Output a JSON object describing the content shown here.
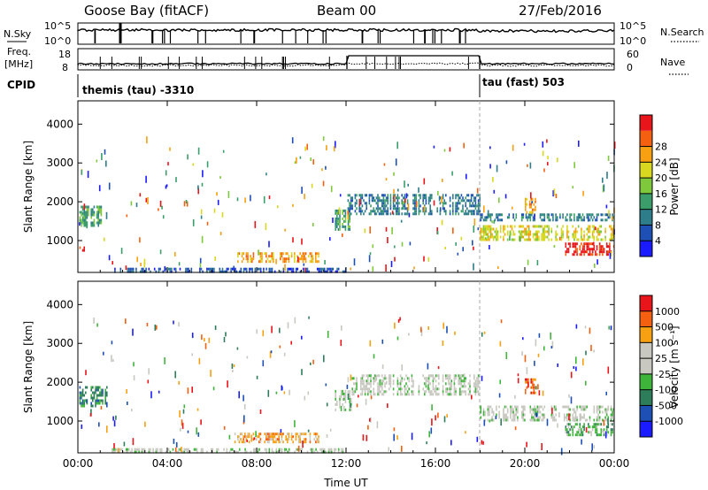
{
  "header": {
    "station": "Goose Bay (fitACF)",
    "beam": "Beam 00",
    "date": "27/Feb/2016"
  },
  "top_panels": {
    "nsky_label": "N.Sky",
    "nsky_ticks": [
      "10^5",
      "10^0"
    ],
    "nsearch_label": "N.Search",
    "freq_label_1": "Freq.",
    "freq_label_2": "[MHz]",
    "freq_ticks": [
      "18",
      "8"
    ],
    "nave_ticks": [
      "60",
      "0"
    ],
    "nave_label": "Nave",
    "cpid_label": "CPID",
    "cpid_1": "themis (tau) -3310",
    "cpid_2": "tau (fast) 503"
  },
  "chart_data": [
    {
      "type": "heatmap",
      "name": "power",
      "ylabel": "Slant Range [km]",
      "xlabel": "",
      "x_ticks": [
        "00:00",
        "04:00",
        "08:00",
        "12:00",
        "16:00",
        "20:00",
        "00:00"
      ],
      "x_hours": [
        0,
        4,
        8,
        12,
        16,
        20,
        24
      ],
      "y_ticks": [
        1000,
        2000,
        3000,
        4000
      ],
      "ylim": [
        180,
        4600
      ],
      "xlim": [
        0,
        24
      ],
      "colorbar": {
        "label": "Power [dB]",
        "ticks": [
          "4",
          "8",
          "12",
          "16",
          "20",
          "24",
          "28"
        ],
        "colors": [
          "#1b1bff",
          "#1e4fb4",
          "#2e7d8a",
          "#3b9e6a",
          "#7ec83c",
          "#d8d820",
          "#f6a012",
          "#f46010",
          "#e8151a"
        ]
      },
      "regions": [
        {
          "t0": 0.0,
          "t1": 1.3,
          "r0": 1400,
          "r1": 1900,
          "level": 3
        },
        {
          "t0": 0.0,
          "t1": 0.3,
          "r0": 750,
          "r1": 850,
          "level": 8
        },
        {
          "t0": 1.5,
          "t1": 12.0,
          "r0": 200,
          "r1": 300,
          "level": 1
        },
        {
          "t0": 7.0,
          "t1": 10.8,
          "r0": 450,
          "r1": 700,
          "level": 6
        },
        {
          "t0": 11.5,
          "t1": 12.2,
          "r0": 1300,
          "r1": 1800,
          "level": 3
        },
        {
          "t0": 12.0,
          "t1": 18.0,
          "r0": 1700,
          "r1": 2200,
          "level": 2
        },
        {
          "t0": 18.0,
          "t1": 24.0,
          "r0": 1000,
          "r1": 1400,
          "level": 5
        },
        {
          "t0": 18.0,
          "t1": 24.0,
          "r0": 1500,
          "r1": 1700,
          "level": 2
        },
        {
          "t0": 21.8,
          "t1": 24.0,
          "r0": 650,
          "r1": 950,
          "level": 8
        },
        {
          "t0": 20.0,
          "t1": 20.5,
          "r0": 1750,
          "r1": 2100,
          "level": 6
        }
      ]
    },
    {
      "type": "heatmap",
      "name": "velocity",
      "ylabel": "Slant Range [km]",
      "xlabel": "Time UT",
      "x_ticks": [
        "00:00",
        "04:00",
        "08:00",
        "12:00",
        "16:00",
        "20:00",
        "00:00"
      ],
      "x_hours": [
        0,
        4,
        8,
        12,
        16,
        20,
        24
      ],
      "y_ticks": [
        1000,
        2000,
        3000,
        4000
      ],
      "ylim": [
        180,
        4600
      ],
      "xlim": [
        0,
        24
      ],
      "colorbar": {
        "label": "Velocity [m s⁻¹]",
        "ticks": [
          "1000",
          "500",
          "100",
          "25",
          "-25",
          "-100",
          "-500",
          "-1000"
        ],
        "colors": [
          "#1b1bff",
          "#1e4fb4",
          "#2e7d5a",
          "#3fb43a",
          "#c8c8c0",
          "#c8c8c0",
          "#f6a012",
          "#f46010",
          "#e8151a"
        ]
      },
      "regions": [
        {
          "t0": 0.0,
          "t1": 1.3,
          "r0": 1400,
          "r1": 1900,
          "level": 2
        },
        {
          "t0": 1.5,
          "t1": 12.0,
          "r0": 200,
          "r1": 300,
          "level": 4
        },
        {
          "t0": 7.0,
          "t1": 10.8,
          "r0": 450,
          "r1": 700,
          "level": 6
        },
        {
          "t0": 11.5,
          "t1": 12.2,
          "r0": 1300,
          "r1": 1800,
          "level": 4
        },
        {
          "t0": 12.0,
          "t1": 18.0,
          "r0": 1700,
          "r1": 2200,
          "level": 4
        },
        {
          "t0": 18.0,
          "t1": 24.0,
          "r0": 1000,
          "r1": 1400,
          "level": 4
        },
        {
          "t0": 21.8,
          "t1": 24.0,
          "r0": 650,
          "r1": 950,
          "level": 3
        },
        {
          "t0": 20.0,
          "t1": 20.5,
          "r0": 1750,
          "r1": 2100,
          "level": 7
        }
      ]
    }
  ]
}
